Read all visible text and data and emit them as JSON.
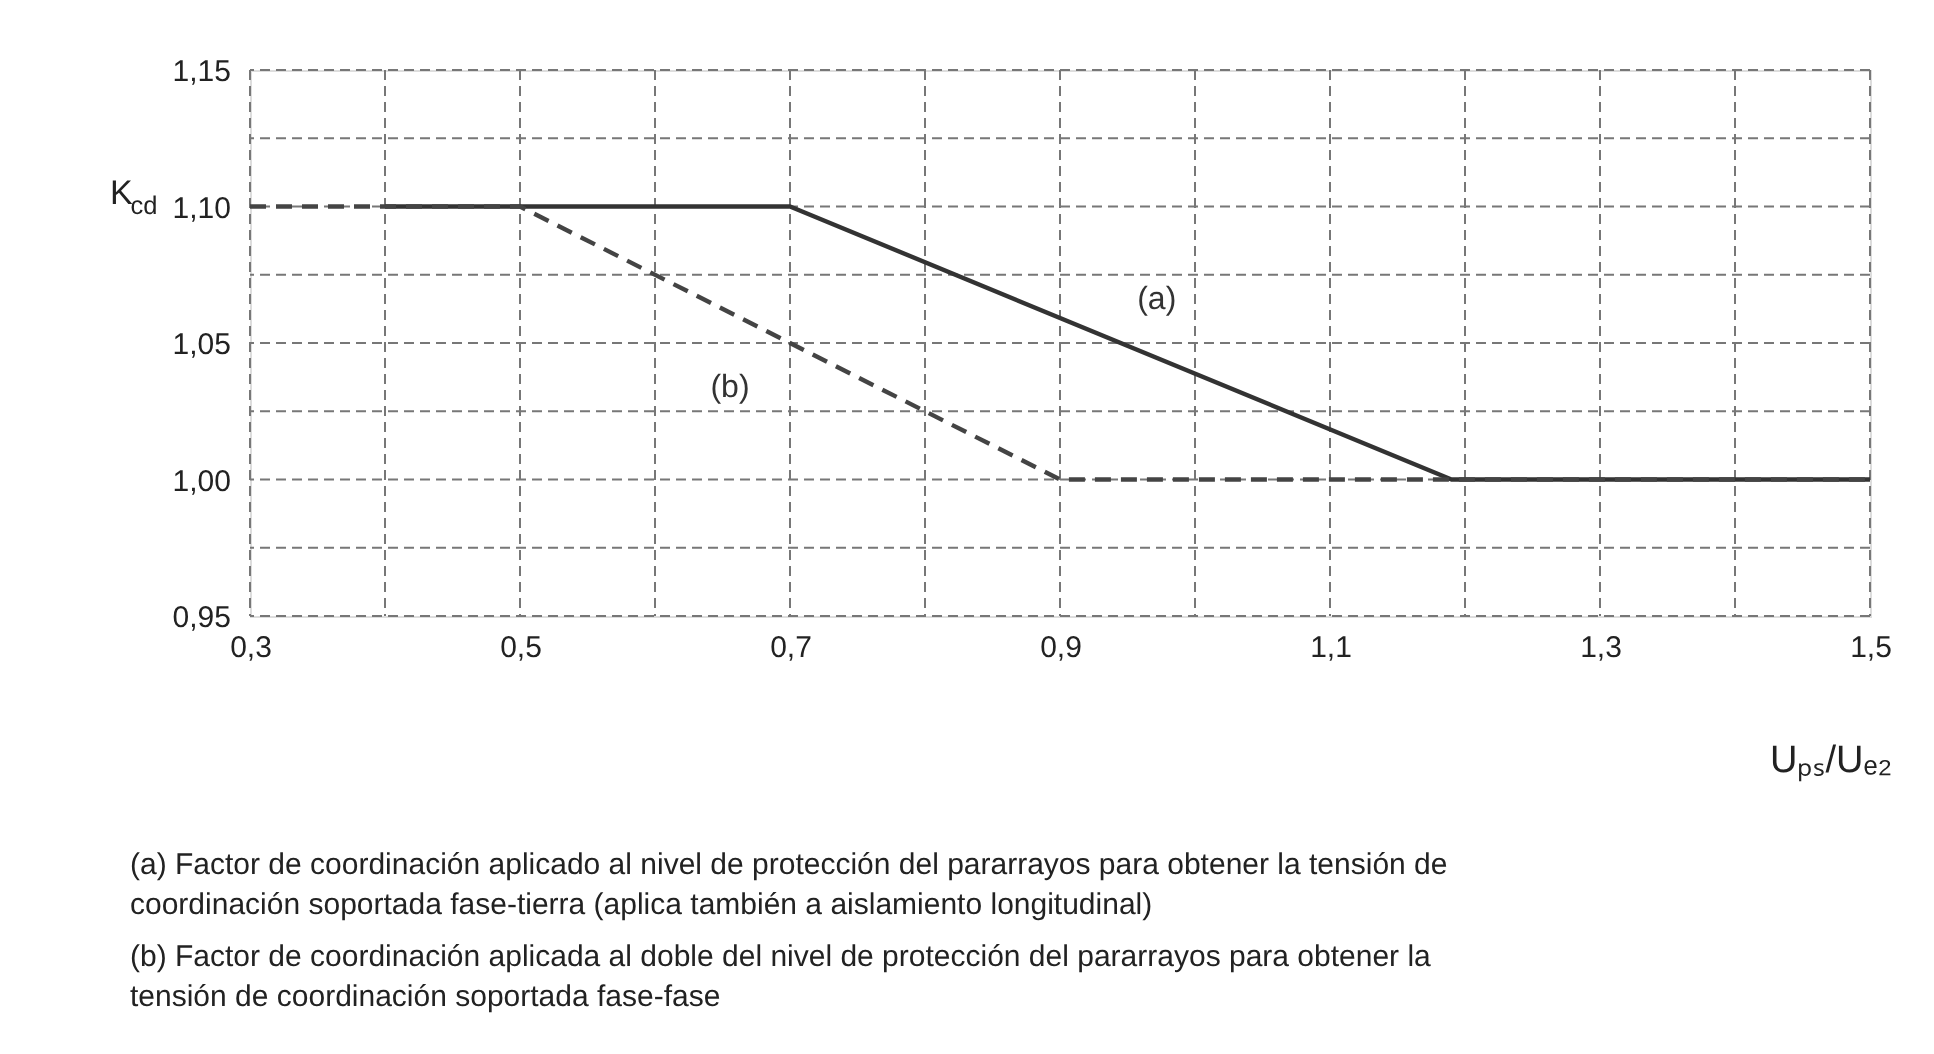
{
  "chart_data": {
    "type": "line",
    "xlabel": "Uₚₛ/Uₑ₂",
    "ylabel": "K$_{cd}$",
    "series": [
      {
        "name": "(a)",
        "color": "#333333",
        "line_style": "solid",
        "x": [
          0.4,
          0.7,
          1.19,
          1.5
        ],
        "values": [
          1.1,
          1.1,
          1.0,
          1.0
        ]
      },
      {
        "name": "(b)",
        "color": "#444444",
        "line_style": "dashed",
        "x": [
          0.3,
          0.5,
          0.9,
          1.5
        ],
        "values": [
          1.1,
          1.1,
          1.0,
          1.0
        ]
      }
    ],
    "xlim": [
      0.3,
      1.5
    ],
    "xticks": [
      {
        "value": 0.3,
        "label": "0,3"
      },
      {
        "value": 0.4,
        "label": null
      },
      {
        "value": 0.5,
        "label": "0,5"
      },
      {
        "value": 0.6,
        "label": null
      },
      {
        "value": 0.7,
        "label": "0,7"
      },
      {
        "value": 0.8,
        "label": null
      },
      {
        "value": 0.9,
        "label": "0,9"
      },
      {
        "value": 1.0,
        "label": null
      },
      {
        "value": 1.1,
        "label": "1,1"
      },
      {
        "value": 1.2,
        "label": null
      },
      {
        "value": 1.3,
        "label": "1,3"
      },
      {
        "value": 1.4,
        "label": null
      },
      {
        "value": 1.5,
        "label": "1,5"
      }
    ],
    "ylim": [
      0.95,
      1.15
    ],
    "yticks": [
      {
        "value": 0.95,
        "label": "0,95"
      },
      {
        "value": 0.975,
        "label": null
      },
      {
        "value": 1.0,
        "label": "1,00"
      },
      {
        "value": 1.025,
        "label": null
      },
      {
        "value": 1.05,
        "label": "1,05"
      },
      {
        "value": 1.075,
        "label": null
      },
      {
        "value": 1.1,
        "label": "1,10"
      },
      {
        "value": 1.125,
        "label": null
      },
      {
        "value": 1.15,
        "label": "1,15"
      }
    ],
    "grid": true,
    "annotations": [
      "(a) Factor de coordinación aplicado al nivel de protección del pararrayos para obtener la tensión de\ncoordinación soportada fase-tierra (aplica también a aislamiento longitudinal)",
      "(b) Factor de coordinación aplicada al doble del nivel de protección del pararrayos para obtener la\ntensión de coordinación soportada fase-fase"
    ]
  }
}
